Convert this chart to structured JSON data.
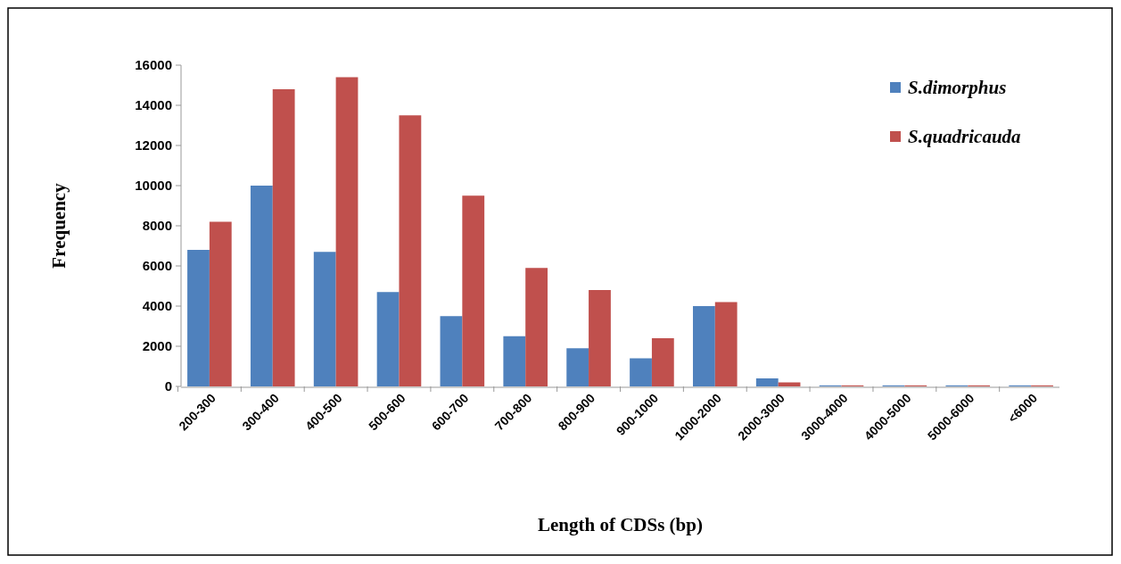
{
  "chart_data": {
    "type": "bar",
    "xlabel": "Length of CDSs (bp)",
    "ylabel": "Frequency",
    "categories": [
      "200-300",
      "300-400",
      "400-500",
      "500-600",
      "600-700",
      "700-800",
      "800-900",
      "900-1000",
      "1000-2000",
      "2000-3000",
      "3000-4000",
      "4000-5000",
      "5000-6000",
      "<6000"
    ],
    "series": [
      {
        "name": "S.dimorphus",
        "color": "#4f81bd",
        "values": [
          6800,
          10000,
          6700,
          4700,
          3500,
          2500,
          1900,
          1400,
          4000,
          400,
          50,
          50,
          50,
          50
        ]
      },
      {
        "name": "S.quadricauda",
        "color": "#c0504d",
        "values": [
          8200,
          14800,
          15400,
          13500,
          9500,
          5900,
          4800,
          2400,
          4200,
          200,
          50,
          50,
          50,
          50
        ]
      }
    ],
    "ylim": [
      0,
      16000
    ],
    "yticks": [
      0,
      2000,
      4000,
      6000,
      8000,
      10000,
      12000,
      14000,
      16000
    ],
    "grid": false,
    "legend": "top right"
  }
}
